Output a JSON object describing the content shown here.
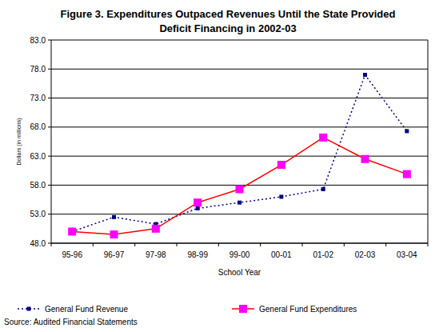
{
  "chart_data": {
    "type": "line",
    "title": "Figure 3.  Expenditures Outpaced Revenues Until the State Provided Deficit Financing in 2002-03",
    "x_label": "School Year",
    "y_label": "Dollars (in millions)",
    "source": "Source: Audited Financial Statements",
    "categories": [
      "95-96",
      "96-97",
      "97-98",
      "98-99",
      "99-00",
      "00-01",
      "01-02",
      "02-03",
      "03-04"
    ],
    "series": [
      {
        "name": "General Fund Revenue",
        "color": "#000080",
        "line_style": "dotted",
        "marker": "square",
        "values": [
          50.0,
          52.5,
          51.3,
          54.0,
          55.0,
          56.0,
          57.3,
          77.0,
          67.3
        ]
      },
      {
        "name": "General Fund Expenditures",
        "color": "#ff0000",
        "line_style": "solid",
        "marker": "square",
        "values": [
          50.0,
          49.5,
          50.5,
          55.0,
          57.3,
          61.5,
          66.2,
          62.5,
          59.9
        ]
      }
    ],
    "ylim": [
      48,
      83
    ],
    "yticks": [
      {
        "value": 48,
        "label": "48.0"
      },
      {
        "value": 53,
        "label": "53.0"
      },
      {
        "value": 58,
        "label": "58.0"
      },
      {
        "value": 63,
        "label": "63.0"
      },
      {
        "value": 68,
        "label": "68.0"
      },
      {
        "value": 73,
        "label": "73.0"
      },
      {
        "value": 78,
        "label": "78.0"
      },
      {
        "value": 83,
        "label": "83.0"
      }
    ],
    "grid": true,
    "legend": "bottom"
  }
}
